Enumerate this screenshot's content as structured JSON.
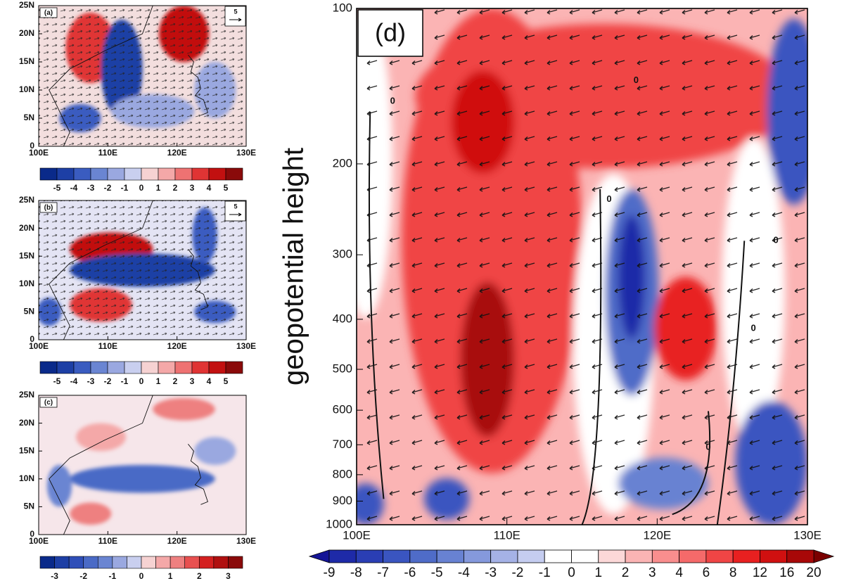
{
  "chart_data": [
    {
      "type": "contour",
      "label": "(a)",
      "ref_vector": "5",
      "xlim": [
        100,
        130
      ],
      "ylim": [
        0,
        25
      ],
      "xticks": [
        {
          "value": 100,
          "label": "100E"
        },
        {
          "value": 110,
          "label": "110E"
        },
        {
          "value": 120,
          "label": "120E"
        },
        {
          "value": 130,
          "label": "130E"
        }
      ],
      "yticks": [
        0,
        {
          "value": 5,
          "label": "5N"
        },
        {
          "value": 10,
          "label": "10N"
        },
        {
          "value": 15,
          "label": "15N"
        },
        {
          "value": 20,
          "label": "20N"
        },
        {
          "value": 25,
          "label": "25N"
        }
      ],
      "colorbar": {
        "lim": [
          -6,
          6
        ],
        "ticks": [
          -5,
          -4,
          -3,
          -2,
          -1,
          0,
          1,
          2,
          3,
          4,
          5
        ],
        "colors": [
          "#0a2a8a",
          "#1d3fa5",
          "#3a5cc0",
          "#6a85d2",
          "#9aa8e0",
          "#c9cfef",
          "#f6d2d2",
          "#f4a8a8",
          "#ee7272",
          "#e03434",
          "#c21010",
          "#8a0a0a"
        ]
      }
    },
    {
      "type": "contour",
      "label": "(b)",
      "ref_vector": "5",
      "xlim": [
        100,
        130
      ],
      "ylim": [
        0,
        25
      ],
      "xticks": [
        {
          "value": 100,
          "label": "100E"
        },
        {
          "value": 110,
          "label": "110E"
        },
        {
          "value": 120,
          "label": "120E"
        },
        {
          "value": 130,
          "label": "130E"
        }
      ],
      "yticks": [
        0,
        {
          "value": 5,
          "label": "5N"
        },
        {
          "value": 10,
          "label": "10N"
        },
        {
          "value": 15,
          "label": "15N"
        },
        {
          "value": 20,
          "label": "20N"
        },
        {
          "value": 25,
          "label": "25N"
        }
      ],
      "colorbar": {
        "lim": [
          -6,
          6
        ],
        "ticks": [
          -5,
          -4,
          -3,
          -2,
          -1,
          0,
          1,
          2,
          3,
          4,
          5
        ],
        "colors": [
          "#0a2a8a",
          "#1d3fa5",
          "#3a5cc0",
          "#6a85d2",
          "#9aa8e0",
          "#c9cfef",
          "#f6d2d2",
          "#f4a8a8",
          "#ee7272",
          "#e03434",
          "#c21010",
          "#8a0a0a"
        ]
      }
    },
    {
      "type": "contour",
      "label": "(c)",
      "xlim": [
        100,
        130
      ],
      "ylim": [
        0,
        25
      ],
      "xticks": [
        {
          "value": 100,
          "label": "100E"
        },
        {
          "value": 110,
          "label": "110E"
        },
        {
          "value": 120,
          "label": "120E"
        },
        {
          "value": 130,
          "label": "130E"
        }
      ],
      "yticks": [
        0,
        {
          "value": 5,
          "label": "5N"
        },
        {
          "value": 10,
          "label": "10N"
        },
        {
          "value": 15,
          "label": "15N"
        },
        {
          "value": 20,
          "label": "20N"
        },
        {
          "value": 25,
          "label": "25N"
        }
      ],
      "colorbar": {
        "lim": [
          -3.5,
          3.5
        ],
        "ticks": [
          -3,
          -2,
          -1,
          0,
          1,
          2,
          3
        ],
        "colors": [
          "#0a2a8a",
          "#1d3fa5",
          "#2f4fb8",
          "#4a6ac6",
          "#6a85d2",
          "#9aa8e0",
          "#c9cfef",
          "#f6d2d2",
          "#f4a8a8",
          "#ee8080",
          "#e85050",
          "#d42020",
          "#b01010",
          "#8a0a0a"
        ]
      }
    },
    {
      "type": "contour",
      "label": "(d)",
      "ylabel": "geopotential height",
      "contour_label": "0",
      "xlim": [
        100,
        130
      ],
      "ylim": [
        1000,
        100
      ],
      "ylog": true,
      "xticks": [
        {
          "value": 100,
          "label": "100E"
        },
        {
          "value": 110,
          "label": "110E"
        },
        {
          "value": 120,
          "label": "120E"
        },
        {
          "value": 130,
          "label": "130E"
        }
      ],
      "yticks": [
        100,
        200,
        300,
        400,
        500,
        600,
        700,
        800,
        900,
        1000
      ],
      "colorbar": {
        "ticks": [
          -9,
          -8,
          -7,
          -6,
          -5,
          -4,
          -3,
          -2,
          -1,
          0,
          1,
          2,
          3,
          4,
          6,
          8,
          12,
          16,
          20
        ],
        "colors": [
          "#141496",
          "#1e2aa8",
          "#2a3eb4",
          "#3a55c0",
          "#4f6cc8",
          "#6882d2",
          "#8599dc",
          "#a5b2e6",
          "#c5cdf0",
          "#ffffff",
          "#ffffff",
          "#fcd8d8",
          "#fbb4b4",
          "#f98e8e",
          "#f56a6a",
          "#f04545",
          "#e82020",
          "#d01010",
          "#a80808",
          "#7a0000"
        ]
      }
    }
  ]
}
